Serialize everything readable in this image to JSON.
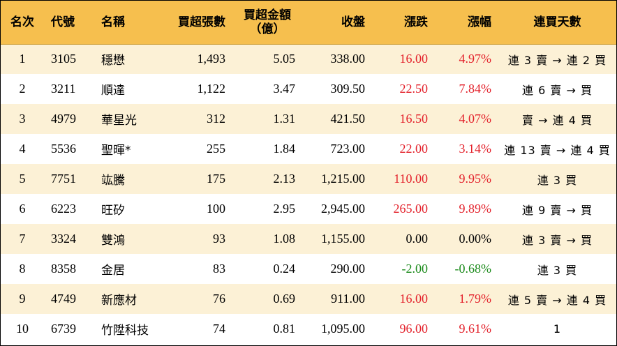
{
  "headers": {
    "rank": "名次",
    "code": "代號",
    "name": "名稱",
    "buy_lots": "買超張數",
    "buy_amount_line1": "買超金額",
    "buy_amount_line2": "（億）",
    "close": "收盤",
    "change": "漲跌",
    "change_pct": "漲幅",
    "consecutive_days": "連買天數"
  },
  "colors": {
    "header_bg": "#f6bf4e",
    "odd_row_bg": "#fcf1d6",
    "up": "#e3202a",
    "down": "#1a8a1a"
  },
  "rows": [
    {
      "rank": "1",
      "code": "3105",
      "name": "穩懋",
      "buy_lots": "1,493",
      "buy_amount": "5.05",
      "close": "338.00",
      "change": "16.00",
      "change_pct": "4.97%",
      "days": "連 3 賣 → 連 2 買",
      "trend": "up"
    },
    {
      "rank": "2",
      "code": "3211",
      "name": "順達",
      "buy_lots": "1,122",
      "buy_amount": "3.47",
      "close": "309.50",
      "change": "22.50",
      "change_pct": "7.84%",
      "days": "連 6 賣 → 買",
      "trend": "up"
    },
    {
      "rank": "3",
      "code": "4979",
      "name": "華星光",
      "buy_lots": "312",
      "buy_amount": "1.31",
      "close": "421.50",
      "change": "16.50",
      "change_pct": "4.07%",
      "days": "賣 → 連 4 買",
      "trend": "up"
    },
    {
      "rank": "4",
      "code": "5536",
      "name": "聖暉*",
      "buy_lots": "255",
      "buy_amount": "1.84",
      "close": "723.00",
      "change": "22.00",
      "change_pct": "3.14%",
      "days": "連 13 賣 → 連 4 買",
      "trend": "up"
    },
    {
      "rank": "5",
      "code": "7751",
      "name": "竑騰",
      "buy_lots": "175",
      "buy_amount": "2.13",
      "close": "1,215.00",
      "change": "110.00",
      "change_pct": "9.95%",
      "days": "連 3 買",
      "trend": "up"
    },
    {
      "rank": "6",
      "code": "6223",
      "name": "旺矽",
      "buy_lots": "100",
      "buy_amount": "2.95",
      "close": "2,945.00",
      "change": "265.00",
      "change_pct": "9.89%",
      "days": "連 9 賣 → 買",
      "trend": "up"
    },
    {
      "rank": "7",
      "code": "3324",
      "name": "雙鴻",
      "buy_lots": "93",
      "buy_amount": "1.08",
      "close": "1,155.00",
      "change": "0.00",
      "change_pct": "0.00%",
      "days": "連 3 賣 → 買",
      "trend": "flat"
    },
    {
      "rank": "8",
      "code": "8358",
      "name": "金居",
      "buy_lots": "83",
      "buy_amount": "0.24",
      "close": "290.00",
      "change": "-2.00",
      "change_pct": "-0.68%",
      "days": "連 3 買",
      "trend": "down"
    },
    {
      "rank": "9",
      "code": "4749",
      "name": "新應材",
      "buy_lots": "76",
      "buy_amount": "0.69",
      "close": "911.00",
      "change": "16.00",
      "change_pct": "1.79%",
      "days": "連 5 賣 → 連 4 買",
      "trend": "up"
    },
    {
      "rank": "10",
      "code": "6739",
      "name": "竹陞科技",
      "buy_lots": "74",
      "buy_amount": "0.81",
      "close": "1,095.00",
      "change": "96.00",
      "change_pct": "9.61%",
      "days": "1",
      "trend": "up"
    }
  ]
}
